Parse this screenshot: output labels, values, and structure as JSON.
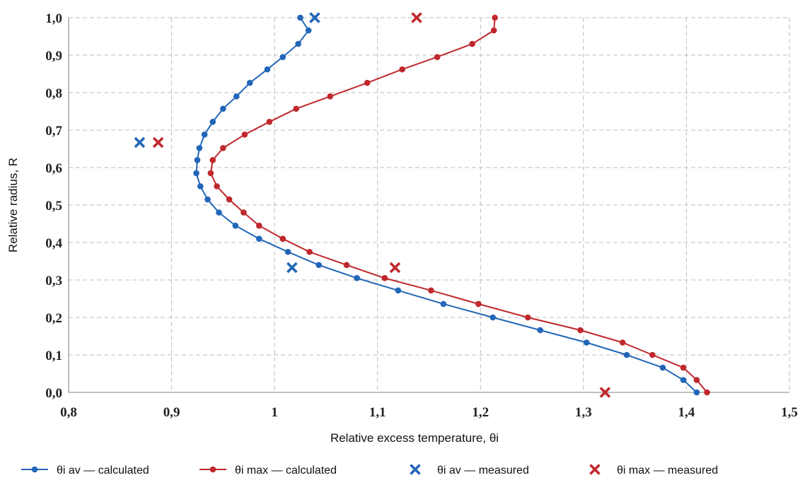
{
  "chart_data": {
    "type": "line",
    "xlabel": "Relative excess temperature, θi",
    "ylabel": "Relative radius, R",
    "xlim": [
      0.8,
      1.5
    ],
    "ylim": [
      0.0,
      1.0
    ],
    "x_ticks": [
      "0,8",
      "0,9",
      "1",
      "1,1",
      "1,2",
      "1,3",
      "1,4",
      "1,5"
    ],
    "y_ticks": [
      "0,0",
      "0,1",
      "0,2",
      "0,3",
      "0,4",
      "0,5",
      "0,6",
      "0,7",
      "0,8",
      "0,9",
      "1,0"
    ],
    "grid": true,
    "legend_position": "bottom",
    "colors": {
      "blue": "#2166b8",
      "red": "#c0282d",
      "grid": "#bdbdbd",
      "axis": "#9a9a9a"
    },
    "series": [
      {
        "name": "θi av — calculated",
        "kind": "line-marker",
        "color": "#2166b8",
        "points": [
          [
            1.41,
            0.0
          ],
          [
            1.397,
            0.033
          ],
          [
            1.377,
            0.066
          ],
          [
            1.342,
            0.1
          ],
          [
            1.303,
            0.133
          ],
          [
            1.258,
            0.166
          ],
          [
            1.212,
            0.2
          ],
          [
            1.164,
            0.236
          ],
          [
            1.12,
            0.272
          ],
          [
            1.08,
            0.305
          ],
          [
            1.043,
            0.34
          ],
          [
            1.013,
            0.375
          ],
          [
            0.985,
            0.41
          ],
          [
            0.962,
            0.445
          ],
          [
            0.946,
            0.48
          ],
          [
            0.935,
            0.515
          ],
          [
            0.928,
            0.55
          ],
          [
            0.924,
            0.585
          ],
          [
            0.925,
            0.62
          ],
          [
            0.927,
            0.652
          ],
          [
            0.932,
            0.688
          ],
          [
            0.94,
            0.722
          ],
          [
            0.95,
            0.757
          ],
          [
            0.963,
            0.79
          ],
          [
            0.976,
            0.826
          ],
          [
            0.993,
            0.862
          ],
          [
            1.008,
            0.895
          ],
          [
            1.023,
            0.93
          ],
          [
            1.033,
            0.966
          ],
          [
            1.025,
            1.0
          ]
        ]
      },
      {
        "name": "θi max — calculated",
        "kind": "line-marker",
        "color": "#c0282d",
        "points": [
          [
            1.42,
            0.0
          ],
          [
            1.41,
            0.033
          ],
          [
            1.397,
            0.066
          ],
          [
            1.367,
            0.1
          ],
          [
            1.338,
            0.133
          ],
          [
            1.297,
            0.166
          ],
          [
            1.246,
            0.2
          ],
          [
            1.198,
            0.236
          ],
          [
            1.152,
            0.272
          ],
          [
            1.107,
            0.305
          ],
          [
            1.07,
            0.34
          ],
          [
            1.034,
            0.375
          ],
          [
            1.008,
            0.41
          ],
          [
            0.985,
            0.445
          ],
          [
            0.97,
            0.48
          ],
          [
            0.956,
            0.515
          ],
          [
            0.944,
            0.55
          ],
          [
            0.938,
            0.585
          ],
          [
            0.94,
            0.62
          ],
          [
            0.95,
            0.652
          ],
          [
            0.971,
            0.688
          ],
          [
            0.995,
            0.722
          ],
          [
            1.021,
            0.757
          ],
          [
            1.054,
            0.79
          ],
          [
            1.09,
            0.826
          ],
          [
            1.124,
            0.862
          ],
          [
            1.158,
            0.895
          ],
          [
            1.192,
            0.93
          ],
          [
            1.213,
            0.966
          ],
          [
            1.214,
            1.0
          ]
        ]
      },
      {
        "name": "θi av — measured",
        "kind": "cross",
        "color": "#2166b8",
        "points": [
          [
            1.039,
            1.0
          ],
          [
            0.869,
            0.667
          ],
          [
            1.017,
            0.333
          ]
        ]
      },
      {
        "name": "θi max — measured",
        "kind": "cross",
        "color": "#c0282d",
        "points": [
          [
            1.138,
            1.0
          ],
          [
            0.887,
            0.667
          ],
          [
            1.117,
            0.333
          ],
          [
            1.321,
            0.0
          ]
        ]
      }
    ]
  }
}
